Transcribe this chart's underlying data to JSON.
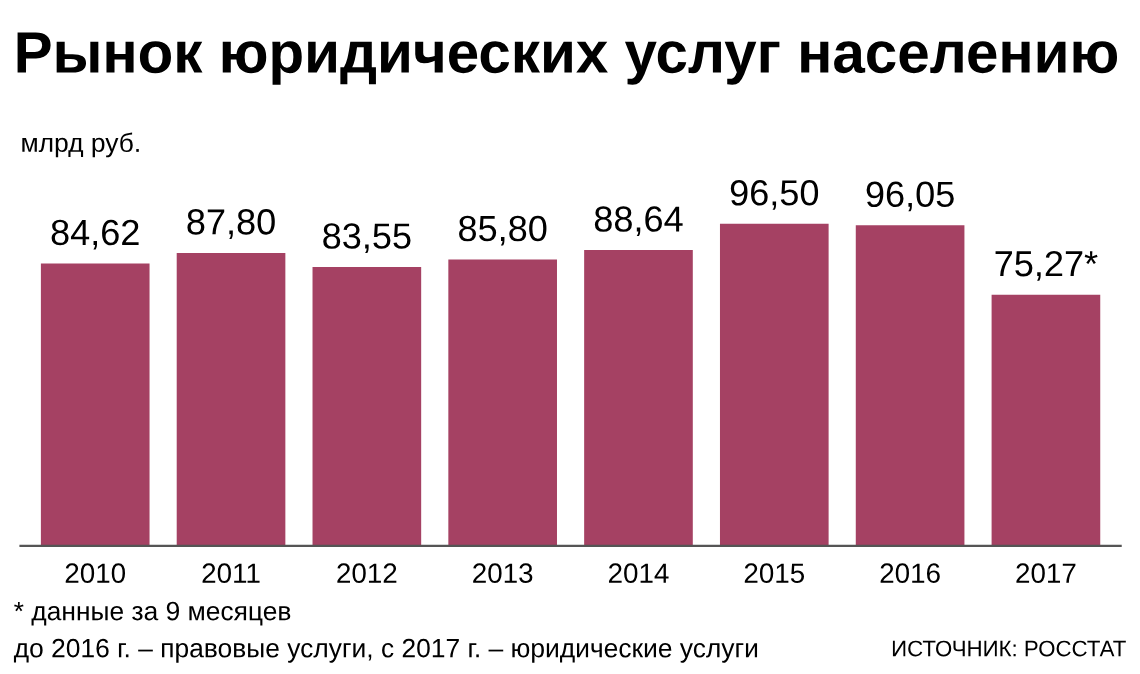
{
  "chart_data": {
    "type": "bar",
    "title": "Рынок юридических услуг населению",
    "ylabel": "млрд руб.",
    "categories": [
      "2010",
      "2011",
      "2012",
      "2013",
      "2014",
      "2015",
      "2016",
      "2017"
    ],
    "values": [
      84.62,
      87.8,
      83.55,
      85.8,
      88.64,
      96.5,
      96.05,
      75.27
    ],
    "value_labels": [
      "84,62",
      "87,80",
      "83,55",
      "85,80",
      "88,64",
      "96,50",
      "96,05",
      "75,27*"
    ],
    "color": "#a54163",
    "grid": false,
    "legend": false,
    "annotations": [
      "* данные за 9 месяцев",
      "до 2016 г. – правовые услуги, с 2017 г. – юридические услуги",
      "ИСТОЧНИК: РОССТАТ"
    ]
  }
}
